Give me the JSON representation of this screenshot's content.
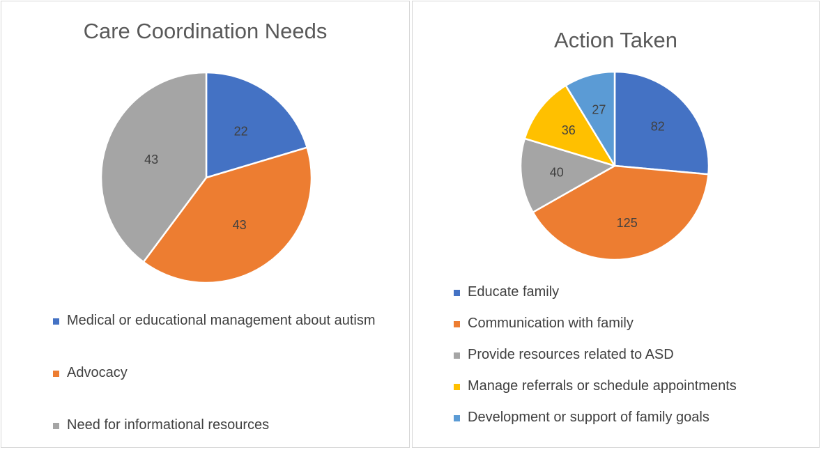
{
  "chart_data": [
    {
      "type": "pie",
      "title": "Care Coordination Needs",
      "categories": [
        "Medical or educational management about autism",
        "Advocacy",
        "Need for informational resources"
      ],
      "values": [
        22,
        43,
        43
      ],
      "colors": [
        "#4472c4",
        "#ed7d31",
        "#a5a5a5"
      ],
      "legend": "bottom"
    },
    {
      "type": "pie",
      "title": "Action Taken",
      "categories": [
        "Educate family",
        "Communication with family",
        "Provide resources related to ASD",
        "Manage referrals or schedule appointments",
        "Development or support of family goals"
      ],
      "values": [
        82,
        125,
        40,
        36,
        27
      ],
      "colors": [
        "#4472c4",
        "#ed7d31",
        "#a5a5a5",
        "#ffc000",
        "#5b9bd5"
      ],
      "legend": "bottom"
    }
  ]
}
